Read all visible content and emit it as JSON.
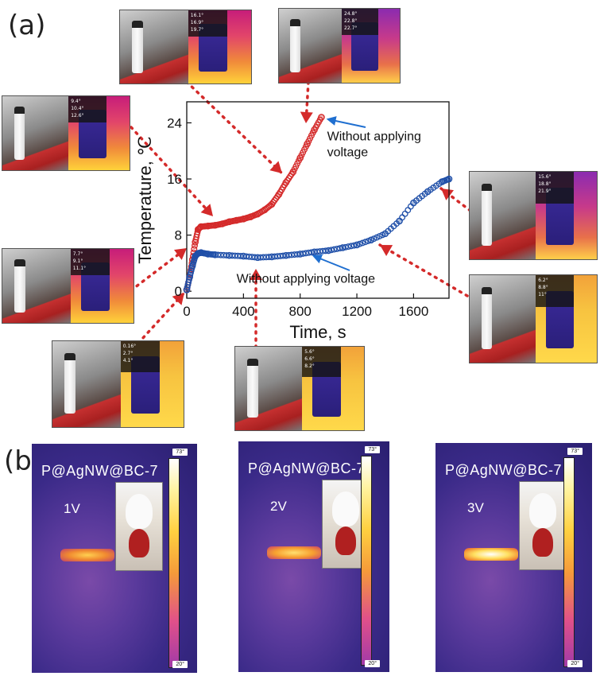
{
  "labels": {
    "a": "(a)",
    "b": "(b)"
  },
  "chart_data": {
    "type": "scatter",
    "xlabel": "Time, s",
    "ylabel": "Temperature, ℃",
    "xlim": [
      0,
      1850
    ],
    "ylim": [
      -1,
      27
    ],
    "xticks": [
      0,
      400,
      800,
      1200,
      1600
    ],
    "yticks": [
      0,
      8,
      16,
      24
    ],
    "grid": false,
    "series": [
      {
        "color": "#d42a2a",
        "x": [
          0,
          20,
          40,
          60,
          80,
          100,
          150,
          200,
          250,
          300,
          350,
          400,
          450,
          500,
          550,
          600,
          650,
          700,
          750,
          800,
          850,
          900,
          950
        ],
        "y": [
          0.2,
          2,
          4.5,
          7,
          8.8,
          9.2,
          9.3,
          9.4,
          9.6,
          9.9,
          10.1,
          10.3,
          10.6,
          11,
          11.6,
          12.4,
          13.8,
          15.5,
          17,
          19,
          21,
          23,
          24.8
        ]
      },
      {
        "color": "#1f4fa8",
        "x": [
          0,
          20,
          40,
          60,
          80,
          100,
          150,
          200,
          300,
          400,
          500,
          600,
          700,
          800,
          900,
          1000,
          1100,
          1200,
          1300,
          1400,
          1500,
          1600,
          1700,
          1800,
          1850
        ],
        "y": [
          0.2,
          2,
          3.6,
          5,
          5.4,
          5.5,
          5.3,
          5.2,
          5.1,
          5.0,
          4.8,
          4.9,
          5.1,
          5.3,
          5.6,
          5.8,
          6.2,
          6.6,
          7.3,
          8.2,
          10,
          12.6,
          14.2,
          15.6,
          16
        ]
      }
    ],
    "annotations": [
      {
        "text": "Without applying\nvoltage",
        "x": 990,
        "y": 21.5
      },
      {
        "text": "Without applying voltage",
        "x": 840,
        "y": 1.2
      }
    ]
  },
  "thumbnails": [
    {
      "readings": [
        "16.1°",
        "16.9°",
        "19.7°"
      ],
      "ir": "cold"
    },
    {
      "readings": [
        "24.8°",
        "22.8°",
        "22.7°"
      ],
      "ir": "warm"
    },
    {
      "readings": [
        "9.4°",
        "10.4°",
        "12.6°"
      ],
      "ir": "cold"
    },
    {
      "readings": [
        "15.6°",
        "18.8°",
        "21.9°"
      ],
      "ir": "warm"
    },
    {
      "readings": [
        "7.7°",
        "9.1°",
        "11.1°"
      ],
      "ir": "cold"
    },
    {
      "readings": [
        "6.2°",
        "8.8°",
        "11°"
      ],
      "ir": "hot"
    },
    {
      "readings": [
        "0.16°",
        "2.7°",
        "4.1°"
      ],
      "ir": "hot"
    },
    {
      "readings": [
        "5.6°",
        "6.6°",
        "8.2°"
      ],
      "ir": "hot"
    }
  ],
  "ir_panels": [
    {
      "sample": "P@AgNW@BC-7",
      "voltage": "1V",
      "max": "73°",
      "min": "20°"
    },
    {
      "sample": "P@AgNW@BC-7",
      "voltage": "2V",
      "max": "73°",
      "min": "20°"
    },
    {
      "sample": "P@AgNW@BC-7",
      "voltage": "3V",
      "max": "73°",
      "min": "20°"
    }
  ]
}
